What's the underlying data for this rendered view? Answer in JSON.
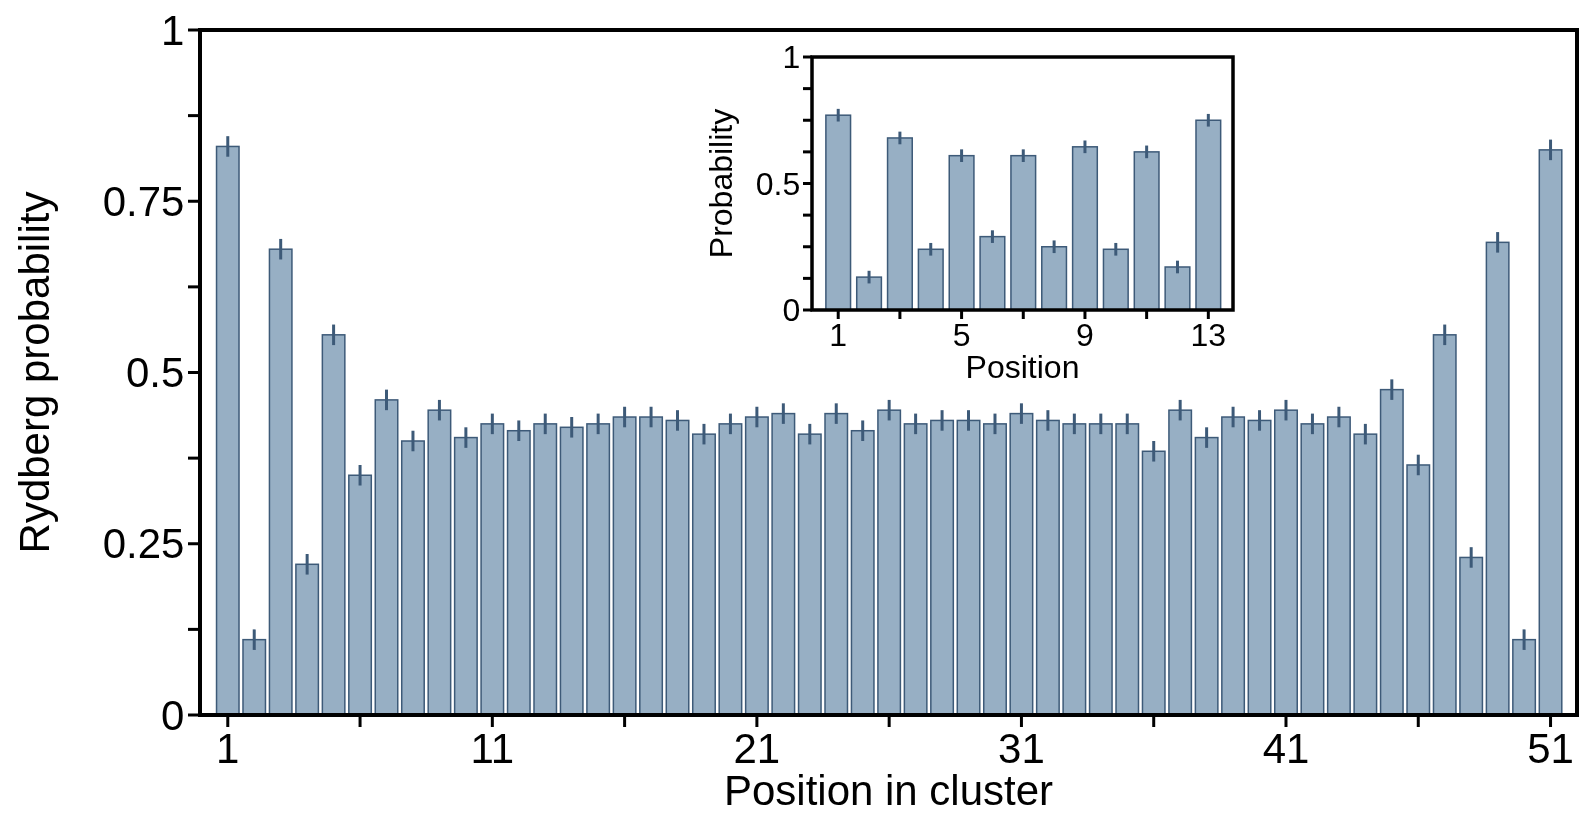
{
  "chart_data": [
    {
      "type": "bar",
      "xlabel": "Position in cluster",
      "ylabel": "Rydberg probability",
      "color": "#97afc4",
      "x": [
        1,
        2,
        3,
        4,
        5,
        6,
        7,
        8,
        9,
        10,
        11,
        12,
        13,
        14,
        15,
        16,
        17,
        18,
        19,
        20,
        21,
        22,
        23,
        24,
        25,
        26,
        27,
        28,
        29,
        30,
        31,
        32,
        33,
        34,
        35,
        36,
        37,
        38,
        39,
        40,
        41,
        42,
        43,
        44,
        45,
        46,
        47,
        48,
        49,
        50,
        51
      ],
      "values": [
        0.83,
        0.11,
        0.68,
        0.22,
        0.555,
        0.35,
        0.46,
        0.4,
        0.445,
        0.405,
        0.425,
        0.415,
        0.425,
        0.42,
        0.425,
        0.435,
        0.435,
        0.43,
        0.41,
        0.425,
        0.435,
        0.44,
        0.41,
        0.44,
        0.415,
        0.445,
        0.425,
        0.43,
        0.43,
        0.425,
        0.44,
        0.43,
        0.425,
        0.425,
        0.425,
        0.385,
        0.445,
        0.405,
        0.435,
        0.43,
        0.445,
        0.425,
        0.435,
        0.41,
        0.475,
        0.365,
        0.555,
        0.23,
        0.69,
        0.11,
        0.825
      ],
      "errors": [
        0.015,
        0.015,
        0.015,
        0.015,
        0.015,
        0.015,
        0.015,
        0.015,
        0.015,
        0.015,
        0.015,
        0.015,
        0.015,
        0.015,
        0.015,
        0.015,
        0.015,
        0.015,
        0.015,
        0.015,
        0.015,
        0.015,
        0.015,
        0.015,
        0.015,
        0.015,
        0.015,
        0.015,
        0.015,
        0.015,
        0.015,
        0.015,
        0.015,
        0.015,
        0.015,
        0.015,
        0.015,
        0.015,
        0.015,
        0.015,
        0.015,
        0.015,
        0.015,
        0.015,
        0.015,
        0.015,
        0.015,
        0.015,
        0.015,
        0.015,
        0.015
      ],
      "xlim": [
        -0.05,
        52
      ],
      "xticks": [
        1,
        {
          "value": 6,
          "label": null
        },
        11,
        {
          "value": 16,
          "label": null
        },
        21,
        {
          "value": 26,
          "label": null
        },
        31,
        {
          "value": 36,
          "label": null
        },
        41,
        {
          "value": 46,
          "label": null
        },
        51
      ],
      "ylim": [
        0,
        1
      ],
      "yticks": [
        0,
        {
          "value": 0.125,
          "label": null
        },
        0.25,
        {
          "value": 0.375,
          "label": null
        },
        0.5,
        {
          "value": 0.625,
          "label": null
        },
        0.75,
        {
          "value": 0.875,
          "label": null
        },
        1
      ]
    },
    {
      "type": "bar",
      "xlabel": "Position",
      "ylabel": "Probability",
      "color": "#97afc4",
      "x": [
        1,
        2,
        3,
        4,
        5,
        6,
        7,
        8,
        9,
        10,
        11,
        12,
        13
      ],
      "values": [
        0.77,
        0.13,
        0.68,
        0.24,
        0.61,
        0.29,
        0.61,
        0.25,
        0.645,
        0.24,
        0.625,
        0.17,
        0.75
      ],
      "errors": [
        0.025,
        0.025,
        0.025,
        0.025,
        0.025,
        0.025,
        0.025,
        0.025,
        0.025,
        0.025,
        0.025,
        0.025,
        0.025
      ],
      "xlim": [
        0.15,
        13.8
      ],
      "xticks": [
        1,
        {
          "value": 3,
          "label": null
        },
        5,
        {
          "value": 7,
          "label": null
        },
        9,
        {
          "value": 11,
          "label": null
        },
        13
      ],
      "ylim": [
        0,
        1
      ],
      "yticks": [
        0,
        {
          "value": 0.125,
          "label": null
        },
        {
          "value": 0.25,
          "label": null
        },
        {
          "value": 0.375,
          "label": null
        },
        0.5,
        {
          "value": 0.625,
          "label": null
        },
        {
          "value": 0.75,
          "label": null
        },
        {
          "value": 0.875,
          "label": null
        },
        1
      ]
    }
  ]
}
